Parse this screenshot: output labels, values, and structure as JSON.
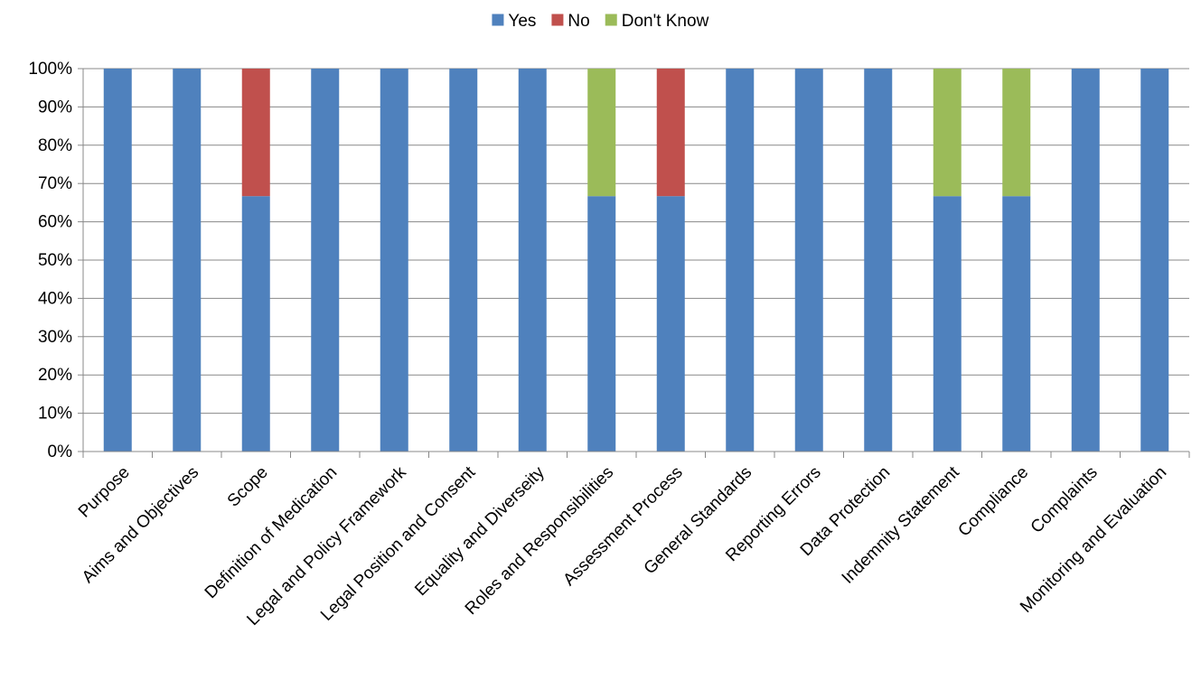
{
  "chart_data": {
    "type": "bar",
    "stacked": true,
    "percent_stacked": true,
    "categories": [
      "Purpose",
      "Aims and Objectives",
      "Scope",
      "Definition of Medication",
      "Legal and Policy Framework",
      "Legal Position and Consent",
      "Equality and  Diverseity",
      "Roles and Responsibilities",
      "Assessment Process",
      "General Standards",
      "Reporting Errors",
      "Data Protection",
      "Indemnity Statement",
      "Compliance",
      "Complaints",
      "Monitoring and Evaluation"
    ],
    "series": [
      {
        "name": "Yes",
        "color": "#4F81BD",
        "values": [
          100,
          100,
          66.7,
          100,
          100,
          100,
          100,
          66.7,
          66.7,
          100,
          100,
          100,
          66.7,
          66.7,
          100,
          100
        ]
      },
      {
        "name": "No",
        "color": "#C0504D",
        "values": [
          0,
          0,
          33.3,
          0,
          0,
          0,
          0,
          0,
          33.3,
          0,
          0,
          0,
          0,
          0,
          0,
          0
        ]
      },
      {
        "name": "Don't Know",
        "color": "#9BBB59",
        "values": [
          0,
          0,
          0,
          0,
          0,
          0,
          0,
          33.3,
          0,
          0,
          0,
          0,
          33.3,
          33.3,
          0,
          0
        ]
      }
    ],
    "ylim": [
      0,
      100
    ],
    "yticks": [
      "0%",
      "10%",
      "20%",
      "30%",
      "40%",
      "50%",
      "60%",
      "70%",
      "80%",
      "90%",
      "100%"
    ],
    "grid": true,
    "legend_position": "top-center",
    "title": "",
    "xlabel": "",
    "ylabel": ""
  }
}
